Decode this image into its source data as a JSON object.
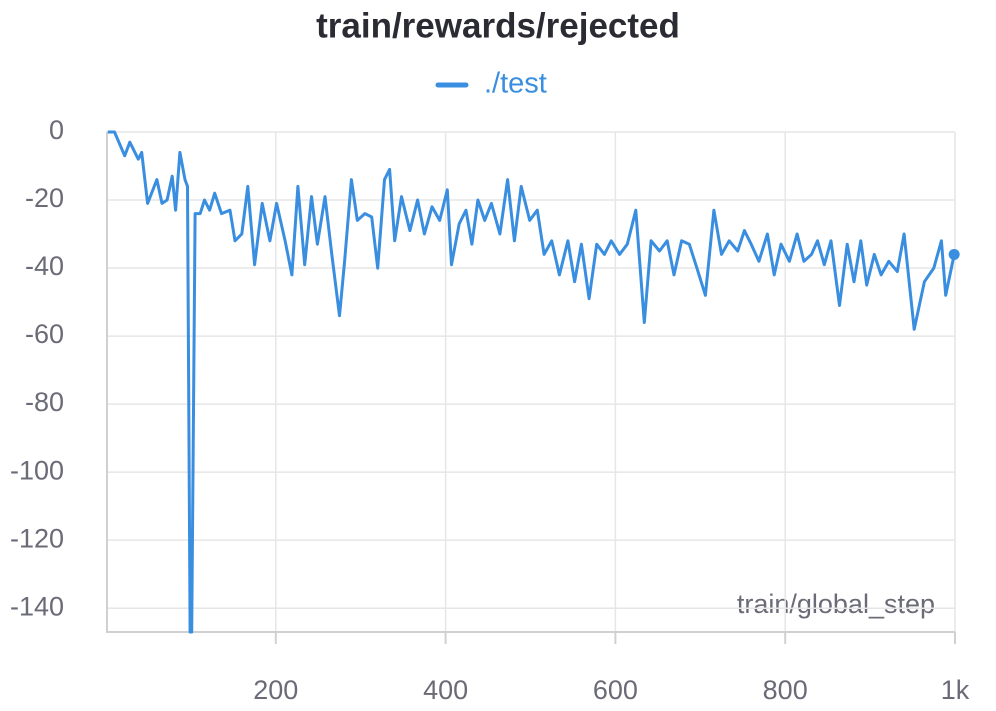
{
  "chart_data": {
    "type": "line",
    "title": "train/rewards/rejected",
    "xlabel": "train/global_step",
    "x": [
      2,
      10,
      22,
      28,
      38,
      42,
      49,
      60,
      66,
      72,
      78,
      82,
      87,
      93,
      96,
      99,
      101,
      105,
      111,
      116,
      122,
      128,
      136,
      146,
      152,
      160,
      167,
      175,
      184,
      193,
      201,
      211,
      219,
      226,
      234,
      242,
      249,
      258,
      266,
      275,
      281,
      289,
      296,
      305,
      313,
      320,
      328,
      334,
      340,
      348,
      358,
      367,
      375,
      384,
      393,
      402,
      407,
      416,
      424,
      431,
      438,
      446,
      454,
      464,
      473,
      481,
      489,
      499,
      508,
      516,
      525,
      534,
      544,
      552,
      560,
      569,
      578,
      587,
      595,
      605,
      614,
      624,
      634,
      642,
      652,
      661,
      669,
      678,
      687,
      696,
      706,
      716,
      725,
      734,
      744,
      752,
      760,
      769,
      779,
      787,
      795,
      805,
      814,
      822,
      831,
      838,
      846,
      854,
      864,
      873,
      881,
      889,
      896,
      905,
      913,
      922,
      932,
      940,
      952,
      964,
      975,
      984,
      989,
      999
    ],
    "series": [
      {
        "name": "./test",
        "color": "#3a8ee0",
        "values": [
          0,
          0,
          -7,
          -3,
          -8,
          -6,
          -21,
          -14,
          -21,
          -20,
          -13,
          -23,
          -6,
          -14,
          -16,
          -147,
          -147,
          -24,
          -24,
          -20,
          -23,
          -18,
          -24,
          -23,
          -32,
          -30,
          -16,
          -39,
          -21,
          -32,
          -21,
          -32,
          -42,
          -16,
          -39,
          -19,
          -33,
          -19,
          -36,
          -54,
          -38,
          -14,
          -26,
          -24,
          -25,
          -40,
          -14,
          -11,
          -32,
          -19,
          -29,
          -20,
          -30,
          -22,
          -26,
          -17,
          -39,
          -27,
          -23,
          -33,
          -20,
          -26,
          -21,
          -30,
          -14,
          -32,
          -16,
          -26,
          -23,
          -36,
          -32,
          -42,
          -32,
          -44,
          -33,
          -49,
          -33,
          -36,
          -32,
          -36,
          -33,
          -23,
          -56,
          -32,
          -35,
          -32,
          -42,
          -32,
          -33,
          -40,
          -48,
          -23,
          -36,
          -32,
          -35,
          -29,
          -33,
          -38,
          -30,
          -42,
          -33,
          -38,
          -30,
          -38,
          -36,
          -32,
          -39,
          -32,
          -51,
          -33,
          -44,
          -32,
          -45,
          -36,
          -42,
          -38,
          -41,
          -30,
          -58,
          -44,
          -40,
          -32,
          -48,
          -36
        ]
      }
    ],
    "xlim": [
      0,
      1000
    ],
    "ylim": [
      -147,
      0
    ],
    "xticks": [
      200,
      400,
      600,
      800,
      {
        "value": 1000,
        "label": "1k"
      }
    ],
    "yticks": [
      0,
      -20,
      -40,
      -60,
      -80,
      -100,
      -120,
      -140
    ],
    "grid": true
  }
}
